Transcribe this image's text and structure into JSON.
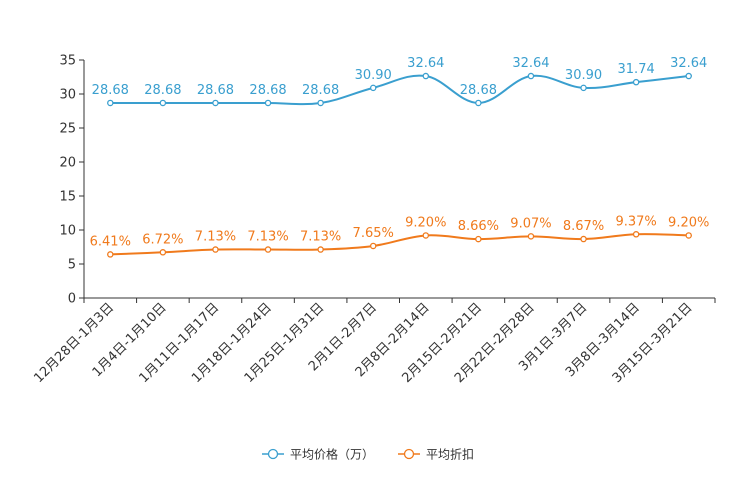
{
  "chart_data": {
    "type": "line",
    "title": "",
    "xlabel": "",
    "ylabel": "",
    "ylim": [
      0,
      35
    ],
    "yticks": [
      "0",
      "5",
      "10",
      "15",
      "20",
      "25",
      "30",
      "35"
    ],
    "categories": [
      "12月28日-1月3日",
      "1月4日-1月10日",
      "1月11日-1月17日",
      "1月18日-1月24日",
      "1月25日-1月31日",
      "2月1日-2月7日",
      "2月8日-2月14日",
      "2月15日-2月21日",
      "2月22日-2月28日",
      "3月1日-3月7日",
      "3月8日-3月14日",
      "3月15日-3月21日"
    ],
    "series": [
      {
        "name": "平均价格（万）",
        "color": "#3a9fcf",
        "values": [
          28.68,
          28.68,
          28.68,
          28.68,
          28.68,
          30.9,
          32.64,
          28.68,
          32.64,
          30.9,
          31.74,
          32.64
        ],
        "labels": [
          "28.68",
          "28.68",
          "28.68",
          "28.68",
          "28.68",
          "30.90",
          "32.64",
          "28.68",
          "32.64",
          "30.90",
          "31.74",
          "32.64"
        ]
      },
      {
        "name": "平均折扣",
        "color": "#f07a1c",
        "values": [
          6.41,
          6.72,
          7.13,
          7.13,
          7.13,
          7.65,
          9.2,
          8.66,
          9.07,
          8.67,
          9.37,
          9.2
        ],
        "labels": [
          "6.41%",
          "6.72%",
          "7.13%",
          "7.13%",
          "7.13%",
          "7.65%",
          "9.20%",
          "8.66%",
          "9.07%",
          "8.67%",
          "9.37%",
          "9.20%"
        ]
      }
    ],
    "legend_position": "bottom-center"
  }
}
